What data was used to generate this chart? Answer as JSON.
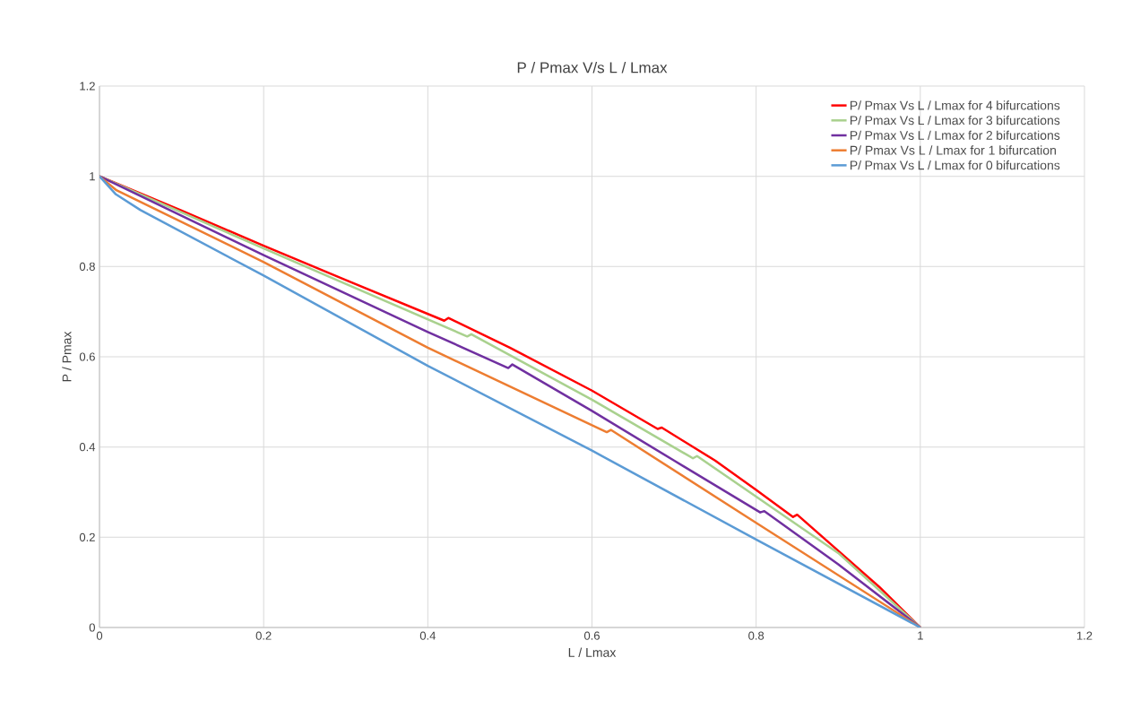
{
  "chart_data": {
    "type": "line",
    "title": "P / Pmax V/s L / Lmax",
    "xlabel": "L / Lmax",
    "ylabel": "P / Pmax",
    "xlim": [
      0,
      1.2
    ],
    "ylim": [
      0,
      1.2
    ],
    "xticks": [
      0,
      0.2,
      0.4,
      0.6,
      0.8,
      1,
      1.2
    ],
    "yticks": [
      0,
      0.2,
      0.4,
      0.6,
      0.8,
      1,
      1.2
    ],
    "grid": true,
    "legend": "top right",
    "marker": "none",
    "line_style": "solid",
    "series": [
      {
        "name": "P/ Pmax Vs L / Lmax for 4 bifurcations",
        "color": "#ff0000",
        "x": [
          0,
          0.1,
          0.2,
          0.3,
          0.42,
          0.425,
          0.5,
          0.6,
          0.68,
          0.685,
          0.75,
          0.8,
          0.845,
          0.85,
          0.9,
          0.95,
          1
        ],
        "values": [
          1,
          0.924,
          0.846,
          0.77,
          0.68,
          0.686,
          0.62,
          0.525,
          0.44,
          0.443,
          0.37,
          0.305,
          0.245,
          0.25,
          0.17,
          0.09,
          0
        ]
      },
      {
        "name": "P/ Pmax Vs L / Lmax for 3 bifurcations",
        "color": "#a9d18e",
        "x": [
          0,
          0.2,
          0.448,
          0.453,
          0.6,
          0.723,
          0.728,
          0.8,
          0.9,
          1
        ],
        "values": [
          1,
          0.84,
          0.645,
          0.65,
          0.505,
          0.375,
          0.38,
          0.29,
          0.165,
          0
        ]
      },
      {
        "name": "P/ Pmax Vs L / Lmax for 2 bifurcations",
        "color": "#7030a0",
        "x": [
          0,
          0.2,
          0.4,
          0.498,
          0.503,
          0.6,
          0.7,
          0.805,
          0.81,
          0.9,
          1
        ],
        "values": [
          1,
          0.825,
          0.655,
          0.575,
          0.583,
          0.48,
          0.37,
          0.255,
          0.258,
          0.14,
          0
        ]
      },
      {
        "name": "P/ Pmax Vs L / Lmax for 1 bifurcation",
        "color": "#ed7d31",
        "x": [
          0,
          0.02,
          0.2,
          0.4,
          0.618,
          0.623,
          0.8,
          1
        ],
        "values": [
          1,
          0.97,
          0.81,
          0.62,
          0.433,
          0.438,
          0.232,
          0
        ]
      },
      {
        "name": "P/ Pmax Vs L / Lmax for 0 bifurcations",
        "color": "#5b9bd5",
        "x": [
          0,
          0.02,
          0.05,
          0.2,
          0.4,
          0.6,
          0.8,
          1
        ],
        "values": [
          1,
          0.96,
          0.925,
          0.78,
          0.58,
          0.392,
          0.195,
          0
        ]
      }
    ]
  }
}
